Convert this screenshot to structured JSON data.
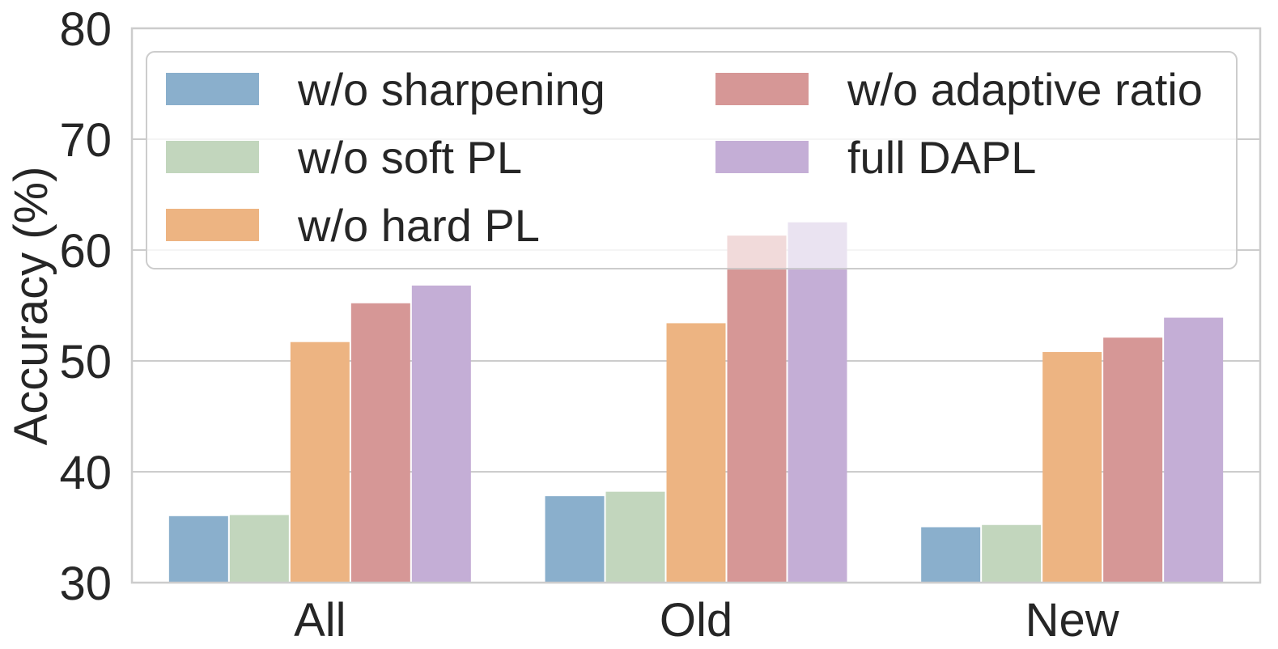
{
  "chart_data": {
    "type": "bar",
    "title": "",
    "xlabel": "",
    "ylabel": "Accuracy (%)",
    "ylim": [
      30,
      80
    ],
    "yticks": [
      30,
      40,
      50,
      60,
      70,
      80
    ],
    "categories": [
      "All",
      "Old",
      "New"
    ],
    "grid": true,
    "legend_position": "top",
    "series": [
      {
        "name": "w/o sharpening",
        "color": "#8aafcc",
        "values": [
          36.0,
          37.8,
          35.0
        ]
      },
      {
        "name": "w/o soft PL",
        "color": "#c2d6bd",
        "values": [
          36.1,
          38.2,
          35.2
        ]
      },
      {
        "name": "w/o hard PL",
        "color": "#edb482",
        "values": [
          51.7,
          53.4,
          50.8
        ]
      },
      {
        "name": "w/o adaptive ratio",
        "color": "#d69796",
        "values": [
          55.2,
          61.3,
          52.1
        ]
      },
      {
        "name": "full DAPL",
        "color": "#c4aed6",
        "values": [
          56.8,
          62.5,
          53.9
        ]
      }
    ]
  }
}
